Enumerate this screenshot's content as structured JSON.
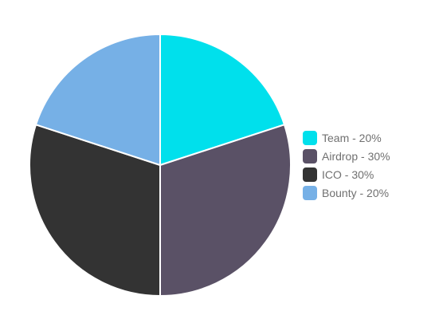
{
  "chart_data": {
    "type": "pie",
    "legend_position": "right",
    "slices": [
      {
        "label": "Team - 20%",
        "value": 20,
        "color": "#00E0EC"
      },
      {
        "label": "Airdrop - 30%",
        "value": 30,
        "color": "#5A5166"
      },
      {
        "label": "ICO - 30%",
        "value": 30,
        "color": "#333333"
      },
      {
        "label": "Bounty - 20%",
        "value": 20,
        "color": "#76B0E6"
      }
    ]
  }
}
